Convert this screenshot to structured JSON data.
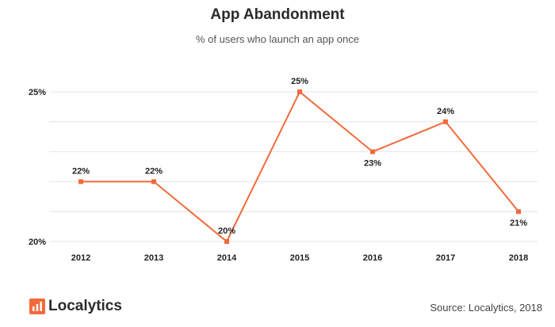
{
  "header": {
    "title": "App Abandonment",
    "subtitle": "% of users who launch an app once"
  },
  "footer": {
    "brand": "Localytics",
    "source": "Source: Localytics, 2018"
  },
  "colors": {
    "series": "#f26a3b",
    "grid": "#e4e4e4",
    "brand_icon": "#f26a3b"
  },
  "chart_data": {
    "type": "line",
    "title": "App Abandonment",
    "subtitle": "% of users who launch an app once",
    "x": [
      "2012",
      "2013",
      "2014",
      "2015",
      "2016",
      "2017",
      "2018"
    ],
    "series": [
      {
        "values": [
          22,
          22,
          20,
          25,
          23,
          24,
          21
        ],
        "labels": [
          "22%",
          "22%",
          "20%",
          "25%",
          "23%",
          "24%",
          "21%"
        ]
      }
    ],
    "ylim": [
      20,
      25
    ],
    "y_ticks": [
      {
        "value": 20,
        "label": "20%"
      },
      {
        "value": 25,
        "label": "25%"
      }
    ],
    "grid": true,
    "xlabel": "",
    "ylabel": ""
  }
}
